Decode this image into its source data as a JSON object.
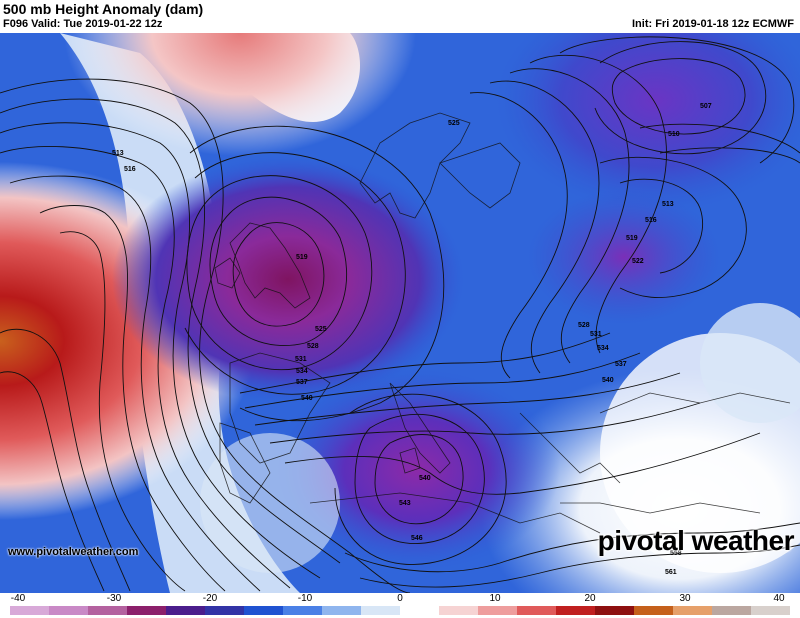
{
  "header": {
    "title": "500 mb Height Anomaly (dam)",
    "valid": "F096 Valid: Tue 2019-01-22 12z",
    "init": "Init: Fri 2019-01-18 12z ECMWF"
  },
  "footer": {
    "site": "www.pivotalweather.com",
    "logo": "pivotal weather"
  },
  "colorbar": {
    "ticks": [
      "-40",
      "-30",
      "-20",
      "-10",
      "0",
      "10",
      "20",
      "30",
      "40"
    ],
    "colors": [
      "#d8a9d8",
      "#c989c6",
      "#b4619f",
      "#8c1f6b",
      "#4b1d8c",
      "#3233a6",
      "#2052d1",
      "#4a80e6",
      "#8fb5ee",
      "#d8e6f6",
      "#ffffff",
      "#f6d3d3",
      "#ee9d9d",
      "#e05a5a",
      "#c01f1f",
      "#8e1010",
      "#c5601b",
      "#e6a06a",
      "#bba7a0",
      "#d8d0cc"
    ]
  },
  "contour_labels": [
    "507",
    "510",
    "513",
    "516",
    "519",
    "522",
    "525",
    "528",
    "531",
    "534",
    "537",
    "540",
    "543",
    "546",
    "558",
    "561"
  ]
}
